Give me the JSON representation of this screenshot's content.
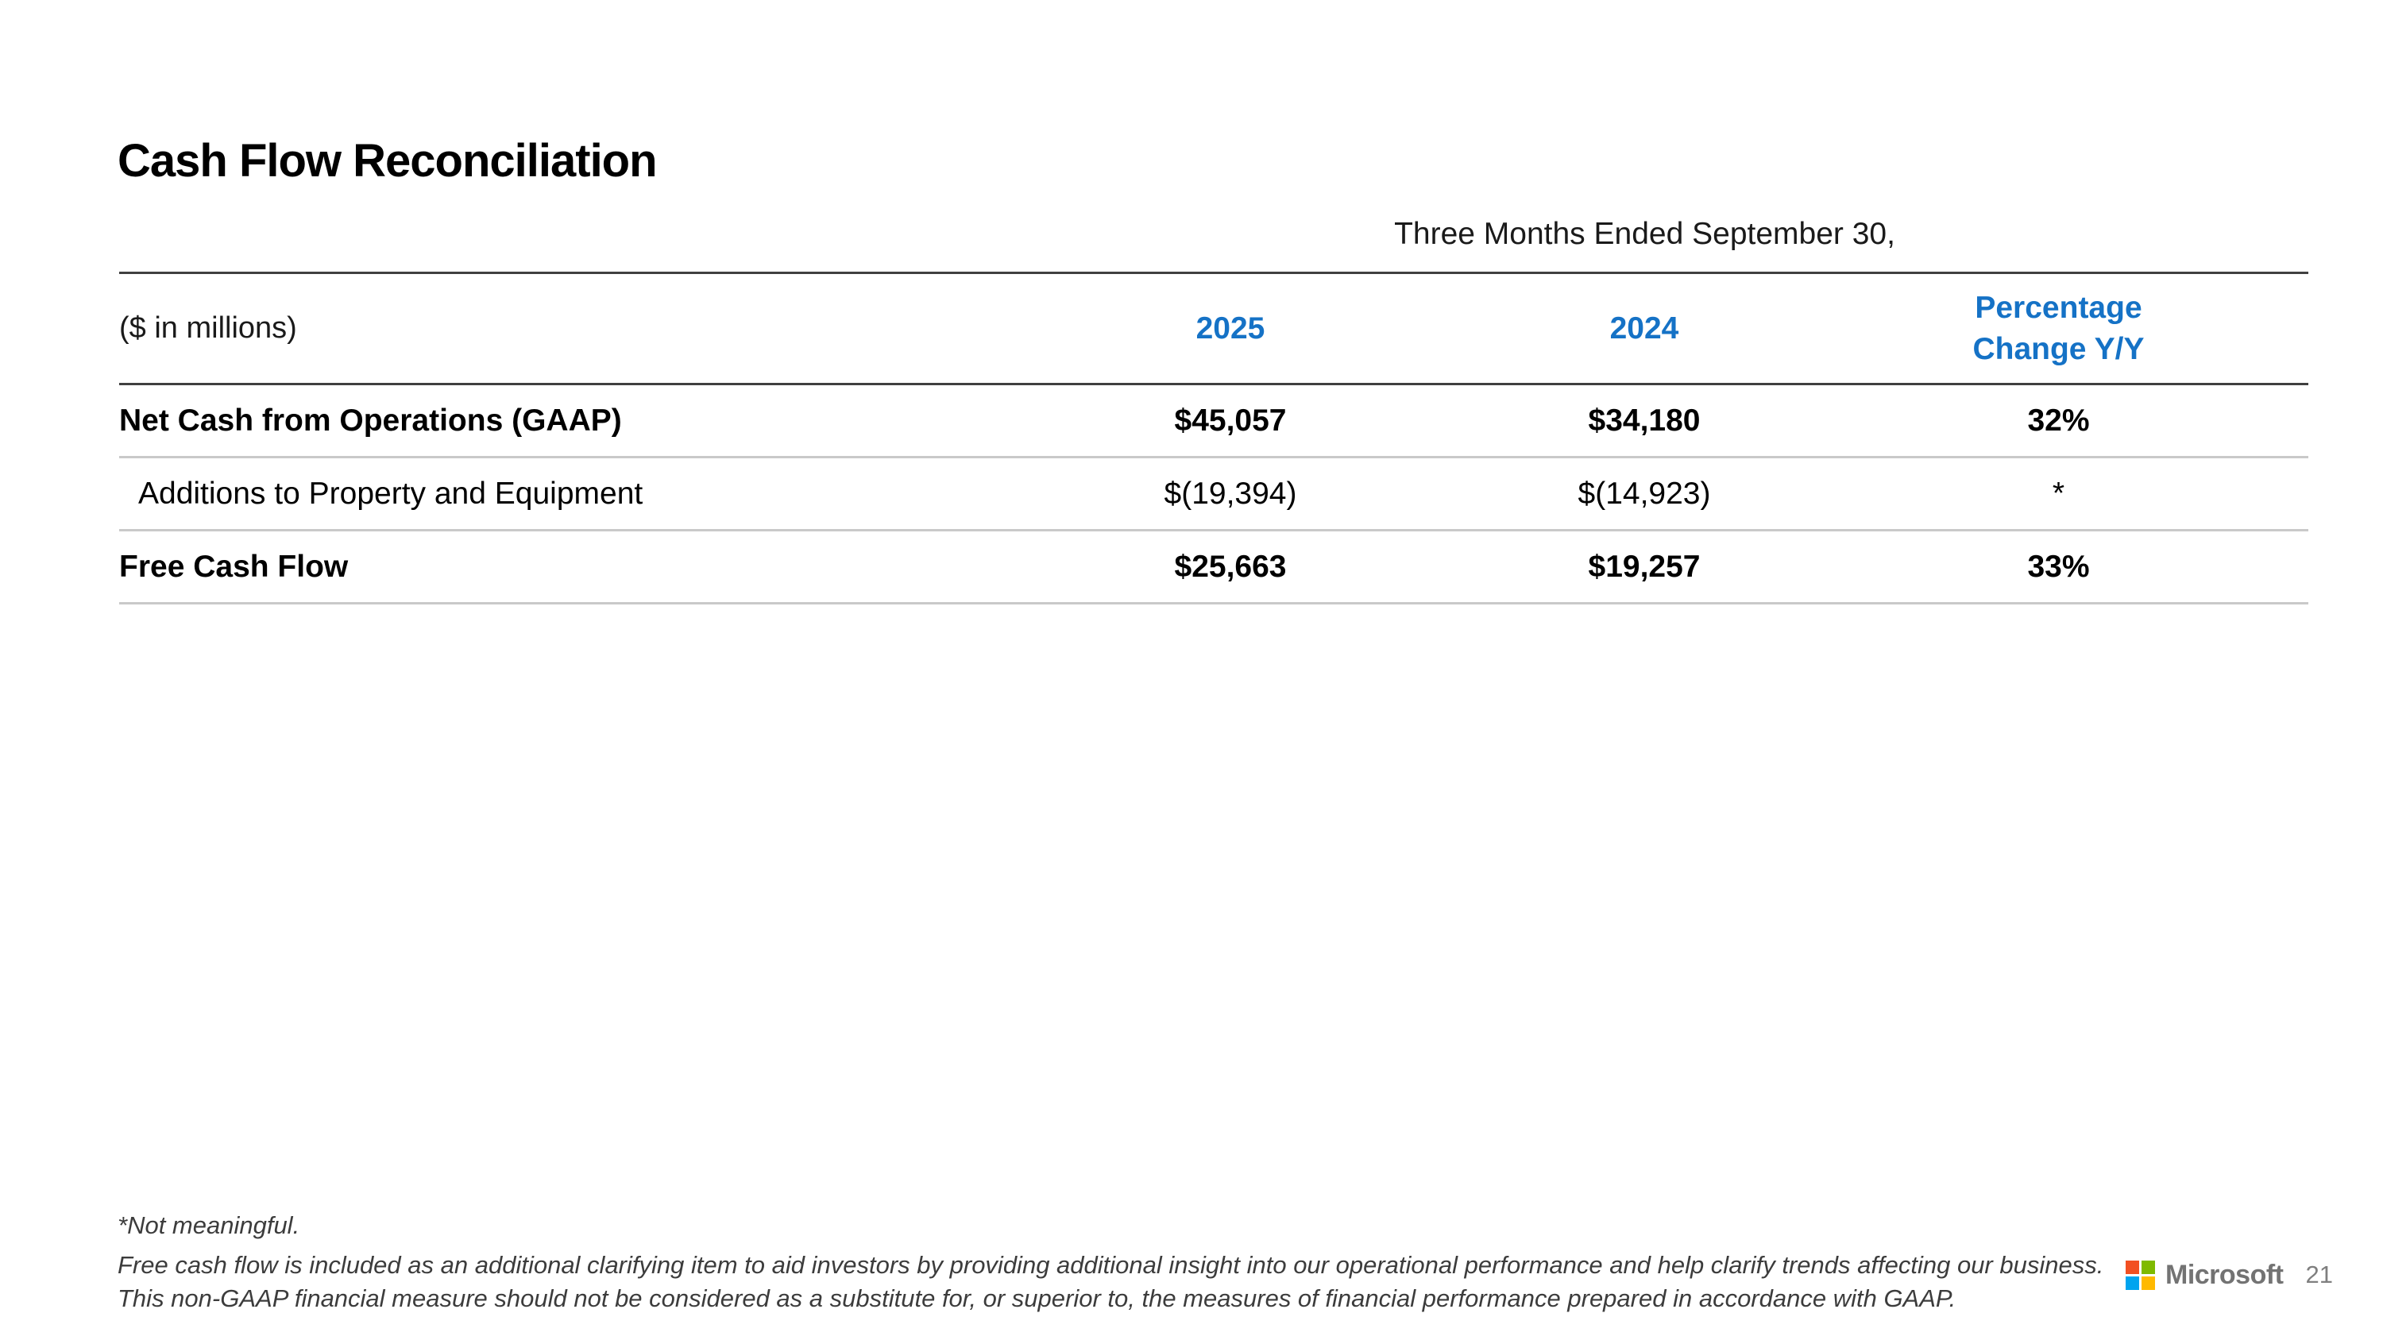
{
  "slide": {
    "title": "Cash Flow Reconciliation",
    "page_number": "21"
  },
  "table": {
    "period_header": "Three Months Ended September 30,",
    "unit_label": "($ in millions)",
    "columns": [
      "2025",
      "2024",
      "Percentage Change Y/Y"
    ],
    "rows": [
      {
        "label": "Net Cash from Operations (GAAP)",
        "y2025": "$45,057",
        "y2024": "$34,180",
        "change": "32%"
      },
      {
        "label": "Additions to Property and Equipment",
        "y2025": "$(19,394)",
        "y2024": "$(14,923)",
        "change": "*"
      },
      {
        "label": "Free Cash Flow",
        "y2025": "$25,663",
        "y2024": "$19,257",
        "change": "33%"
      }
    ]
  },
  "footnotes": [
    "*Not meaningful.",
    "Free cash flow is included as an additional clarifying item to aid investors by providing additional insight into our operational performance and help clarify trends affecting our business.",
    "This non-GAAP financial measure should not be considered as a substitute for, or superior to, the measures of financial performance prepared in accordance with GAAP."
  ],
  "footer": {
    "brand": "Microsoft"
  },
  "colors": {
    "accent_blue": "#1572C6",
    "line_dark": "#404040",
    "line_light": "#C9C9C9",
    "text_black": "#000000",
    "footnote_gray": "#3C3C3C",
    "brand_gray": "#737373",
    "logo_red": "#F25022",
    "logo_green": "#7FBA00",
    "logo_blue": "#00A4EF",
    "logo_yellow": "#FFB900"
  }
}
